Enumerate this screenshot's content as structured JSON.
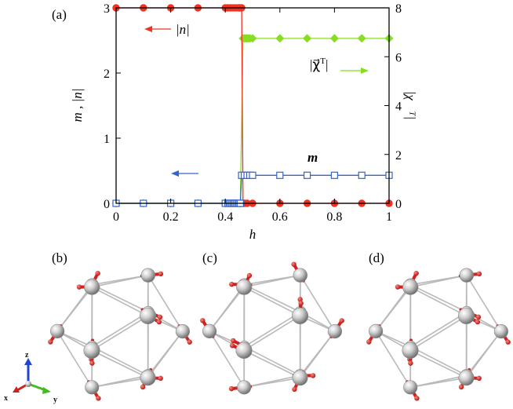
{
  "chart_data": {
    "type": "line",
    "panel_label": "(a)",
    "xlabel": "h",
    "ylabel_left": "m , |n|",
    "ylabel_right": "|χ⃗ᵀ|",
    "xlim": [
      0,
      1
    ],
    "ylim_left": [
      0,
      3
    ],
    "ylim_right": [
      0,
      8
    ],
    "x_ticks": [
      "0",
      "0.2",
      "0.4",
      "0.6",
      "0.8",
      "1"
    ],
    "y_left_ticks": [
      "0",
      "1",
      "2",
      "3"
    ],
    "y_right_ticks": [
      "0",
      "2",
      "4",
      "6",
      "8"
    ],
    "grid": false,
    "series": [
      {
        "name": "|n|",
        "axis": "left",
        "color": "#ee3322",
        "marker": "filled-circle",
        "x": [
          0,
          0.1,
          0.2,
          0.3,
          0.4,
          0.41,
          0.42,
          0.43,
          0.44,
          0.45,
          0.455,
          0.46,
          0.465,
          0.47,
          0.48,
          0.5,
          0.6,
          0.7,
          0.8,
          0.9,
          1.0
        ],
        "y": [
          3,
          3,
          3,
          3,
          3,
          3,
          3,
          3,
          3,
          3,
          3,
          3,
          0,
          0,
          0,
          0,
          0,
          0,
          0,
          0,
          0
        ]
      },
      {
        "name": "|χ⃗ᵀ|",
        "axis": "right",
        "color": "#88dd22",
        "marker": "filled-diamond",
        "x": [
          0,
          0.1,
          0.2,
          0.3,
          0.4,
          0.455,
          0.465,
          0.47,
          0.475,
          0.48,
          0.485,
          0.49,
          0.5,
          0.6,
          0.7,
          0.8,
          0.9,
          1.0
        ],
        "y": [
          0,
          0,
          0,
          0,
          0,
          0,
          6.75,
          6.75,
          6.75,
          6.75,
          6.75,
          6.75,
          6.75,
          6.75,
          6.75,
          6.75,
          6.75,
          6.75
        ]
      },
      {
        "name": "m",
        "axis": "left",
        "color": "#3366cc",
        "marker": "open-square",
        "x": [
          0,
          0.1,
          0.2,
          0.3,
          0.4,
          0.41,
          0.415,
          0.42,
          0.425,
          0.43,
          0.435,
          0.44,
          0.445,
          0.45,
          0.455,
          0.46,
          0.47,
          0.48,
          0.49,
          0.5,
          0.6,
          0.7,
          0.8,
          0.9,
          1.0
        ],
        "y": [
          0,
          0,
          0,
          0,
          0,
          0,
          0,
          0,
          0,
          0,
          0,
          0,
          0,
          0,
          0,
          0.43,
          0.43,
          0.43,
          0.43,
          0.43,
          0.43,
          0.43,
          0.43,
          0.43,
          0.43
        ]
      }
    ],
    "annotations": {
      "n_label": "|n|",
      "chi_label_base": "|χ⃗",
      "chi_label_sup": "T",
      "chi_label_end": "|",
      "m_label": "m"
    }
  },
  "sub_panels": [
    {
      "label": "(b)"
    },
    {
      "label": "(c)"
    },
    {
      "label": "(d)"
    }
  ],
  "axes_triad": {
    "x": "x",
    "y": "y",
    "z": "z"
  },
  "colors": {
    "n": "#ee3322",
    "chi": "#88dd22",
    "m": "#3366cc",
    "sphere": "#c8c8c8",
    "spin": "#dd2222"
  }
}
